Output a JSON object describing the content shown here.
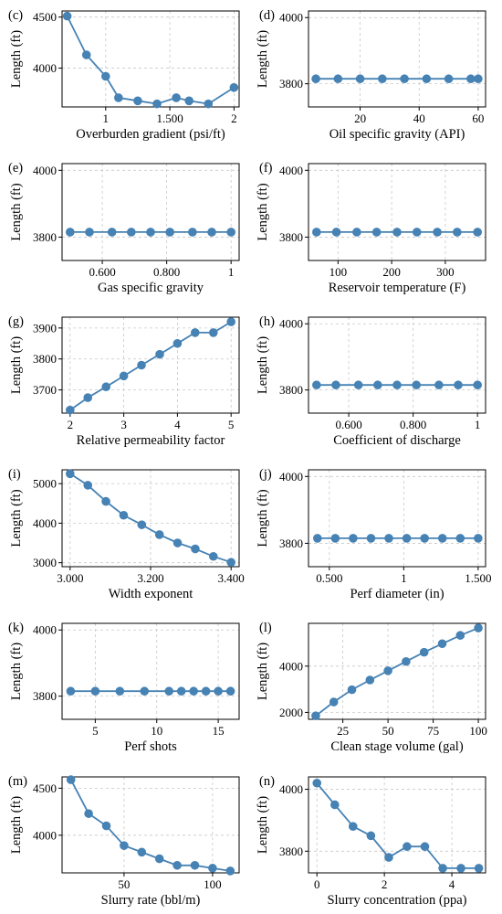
{
  "chart_data": [
    {
      "panel": "(c)",
      "type": "line",
      "xlabel": "Overburden gradient (psi/ft)",
      "ylabel": "Length (ft)",
      "xlim": [
        0.66,
        2.04
      ],
      "ylim": [
        3620,
        4560
      ],
      "xticks": [
        1,
        1.5,
        2
      ],
      "xtick_labels": [
        "1",
        "1.500",
        "2"
      ],
      "yticks": [
        4000,
        4500
      ],
      "ytick_labels": [
        "4000",
        "4500"
      ],
      "x": [
        0.7,
        0.85,
        1.0,
        1.1,
        1.25,
        1.4,
        1.55,
        1.65,
        1.8,
        2.0
      ],
      "y": [
        4510,
        4130,
        3920,
        3710,
        3680,
        3650,
        3710,
        3680,
        3650,
        3810
      ]
    },
    {
      "panel": "(d)",
      "type": "line",
      "xlabel": "Oil specific gravity (API)",
      "ylabel": "Length (ft)",
      "xlim": [
        2.5,
        62.5
      ],
      "ylim": [
        3730,
        4020
      ],
      "xticks": [
        20,
        40,
        60
      ],
      "xtick_labels": [
        "20",
        "40",
        "60"
      ],
      "yticks": [
        3800,
        4000
      ],
      "ytick_labels": [
        "3800",
        "4000"
      ],
      "x": [
        5,
        12.5,
        20,
        27.5,
        35,
        42.5,
        50,
        57.5,
        60
      ],
      "y": [
        3815,
        3815,
        3815,
        3815,
        3815,
        3815,
        3815,
        3815,
        3815
      ]
    },
    {
      "panel": "(e)",
      "type": "line",
      "xlabel": "Gas specific gravity",
      "ylabel": "Length (ft)",
      "xlim": [
        0.475,
        1.025
      ],
      "ylim": [
        3730,
        4020
      ],
      "xticks": [
        0.6,
        0.8,
        1.0
      ],
      "xtick_labels": [
        "0.600",
        "0.800",
        "1"
      ],
      "yticks": [
        3800,
        4000
      ],
      "ytick_labels": [
        "3800",
        "4000"
      ],
      "x": [
        0.5,
        0.56,
        0.63,
        0.69,
        0.75,
        0.81,
        0.88,
        0.94,
        1.0
      ],
      "y": [
        3815,
        3815,
        3815,
        3815,
        3815,
        3815,
        3815,
        3815,
        3815
      ]
    },
    {
      "panel": "(f)",
      "type": "line",
      "xlabel": "Reservoir temperature (F)",
      "ylabel": "Length (ft)",
      "xlim": [
        45,
        375
      ],
      "ylim": [
        3730,
        4020
      ],
      "xticks": [
        100,
        200,
        300
      ],
      "xtick_labels": [
        "100",
        "200",
        "300"
      ],
      "yticks": [
        3800,
        4000
      ],
      "ytick_labels": [
        "3800",
        "4000"
      ],
      "x": [
        60,
        97,
        135,
        172,
        210,
        247,
        285,
        322,
        360
      ],
      "y": [
        3815,
        3815,
        3815,
        3815,
        3815,
        3815,
        3815,
        3815,
        3815
      ]
    },
    {
      "panel": "(g)",
      "type": "line",
      "xlabel": "Relative permeability factor",
      "ylabel": "Length (ft)",
      "xlim": [
        1.85,
        5.15
      ],
      "ylim": [
        3625,
        3935
      ],
      "xticks": [
        2,
        3,
        4,
        5
      ],
      "xtick_labels": [
        "2",
        "3",
        "4",
        "5"
      ],
      "yticks": [
        3700,
        3800,
        3900
      ],
      "ytick_labels": [
        "3700",
        "3800",
        "3900"
      ],
      "x": [
        2.0,
        2.33,
        2.67,
        3.0,
        3.33,
        3.67,
        4.0,
        4.33,
        4.67,
        5.0
      ],
      "y": [
        3635,
        3675,
        3710,
        3745,
        3780,
        3815,
        3850,
        3885,
        3885,
        3920
      ]
    },
    {
      "panel": "(h)",
      "type": "line",
      "xlabel": "Coefficient of discharge",
      "ylabel": "Length (ft)",
      "xlim": [
        0.475,
        1.025
      ],
      "ylim": [
        3730,
        4020
      ],
      "xticks": [
        0.6,
        0.8,
        1.0
      ],
      "xtick_labels": [
        "0.600",
        "0.800",
        "1"
      ],
      "yticks": [
        3800,
        4000
      ],
      "ytick_labels": [
        "3800",
        "4000"
      ],
      "x": [
        0.5,
        0.56,
        0.63,
        0.69,
        0.75,
        0.81,
        0.88,
        0.94,
        1.0
      ],
      "y": [
        3815,
        3815,
        3815,
        3815,
        3815,
        3815,
        3815,
        3815,
        3815
      ]
    },
    {
      "panel": "(i)",
      "type": "line",
      "xlabel": "Width exponent",
      "ylabel": "Length (ft)",
      "xlim": [
        2.98,
        3.42
      ],
      "ylim": [
        2900,
        5350
      ],
      "xticks": [
        3.0,
        3.2,
        3.4
      ],
      "xtick_labels": [
        "3.000",
        "3.200",
        "3.400"
      ],
      "yticks": [
        3000,
        4000,
        5000
      ],
      "ytick_labels": [
        "3000",
        "4000",
        "5000"
      ],
      "x": [
        3.0,
        3.044,
        3.089,
        3.133,
        3.178,
        3.222,
        3.267,
        3.311,
        3.356,
        3.4
      ],
      "y": [
        5250,
        4960,
        4550,
        4200,
        3960,
        3710,
        3500,
        3350,
        3160,
        3010
      ]
    },
    {
      "panel": "(j)",
      "type": "line",
      "xlabel": "Perf diameter (in)",
      "ylabel": "Length (ft)",
      "xlim": [
        0.36,
        1.55
      ],
      "ylim": [
        3730,
        4020
      ],
      "xticks": [
        0.5,
        1.0,
        1.5
      ],
      "xtick_labels": [
        "0.500",
        "1",
        "1.500"
      ],
      "yticks": [
        3800,
        4000
      ],
      "ytick_labels": [
        "3800",
        "4000"
      ],
      "x": [
        0.42,
        0.54,
        0.66,
        0.78,
        0.9,
        1.02,
        1.14,
        1.26,
        1.38,
        1.5
      ],
      "y": [
        3815,
        3815,
        3815,
        3815,
        3815,
        3815,
        3815,
        3815,
        3815,
        3815
      ]
    },
    {
      "panel": "(k)",
      "type": "line",
      "xlabel": "Perf shots",
      "ylabel": "Length (ft)",
      "xlim": [
        2.3,
        16.7
      ],
      "ylim": [
        3730,
        4020
      ],
      "xticks": [
        5,
        10,
        15
      ],
      "xtick_labels": [
        "5",
        "10",
        "15"
      ],
      "yticks": [
        3800,
        4000
      ],
      "ytick_labels": [
        "3800",
        "4000"
      ],
      "x": [
        3,
        5,
        7,
        9,
        11,
        12,
        13,
        14,
        15,
        16
      ],
      "y": [
        3815,
        3815,
        3815,
        3815,
        3815,
        3815,
        3815,
        3815,
        3815,
        3815
      ]
    },
    {
      "panel": "(l)",
      "type": "line",
      "xlabel": "Clean stage volume (gal)",
      "ylabel": "Length (ft)",
      "xlim": [
        6,
        104
      ],
      "ylim": [
        1700,
        5850
      ],
      "xticks": [
        25,
        50,
        75,
        100
      ],
      "xtick_labels": [
        "25",
        "50",
        "75",
        "100"
      ],
      "yticks": [
        2000,
        4000
      ],
      "ytick_labels": [
        "2000",
        "4000"
      ],
      "x": [
        10,
        20,
        30,
        40,
        50,
        60,
        70,
        80,
        90,
        100
      ],
      "y": [
        1850,
        2450,
        2980,
        3400,
        3800,
        4200,
        4600,
        4970,
        5330,
        5650
      ]
    },
    {
      "panel": "(m)",
      "type": "line",
      "xlabel": "Slurry rate (bbl/m)",
      "ylabel": "Length (ft)",
      "xlim": [
        15,
        115
      ],
      "ylim": [
        3600,
        4620
      ],
      "xticks": [
        50,
        100
      ],
      "xtick_labels": [
        "50",
        "100"
      ],
      "yticks": [
        4000,
        4500
      ],
      "ytick_labels": [
        "4000",
        "4500"
      ],
      "x": [
        20,
        30,
        40,
        50,
        60,
        70,
        80,
        90,
        100,
        110
      ],
      "y": [
        4590,
        4230,
        4100,
        3890,
        3820,
        3750,
        3680,
        3680,
        3650,
        3620
      ]
    },
    {
      "panel": "(n)",
      "type": "line",
      "xlabel": "Slurry concentration (ppa)",
      "ylabel": "Length (ft)",
      "xlim": [
        -0.25,
        5.0
      ],
      "ylim": [
        3730,
        4040
      ],
      "xticks": [
        0,
        2,
        4
      ],
      "xtick_labels": [
        "0",
        "2",
        "4"
      ],
      "yticks": [
        3800,
        4000
      ],
      "ytick_labels": [
        "3800",
        "4000"
      ],
      "x": [
        0.0,
        0.53,
        1.07,
        1.6,
        2.13,
        2.67,
        3.2,
        3.73,
        4.27,
        4.8
      ],
      "y": [
        4020,
        3950,
        3880,
        3850,
        3780,
        3815,
        3815,
        3745,
        3745,
        3745
      ]
    }
  ],
  "colors": {
    "series": "#4682b4",
    "grid": "#c8c8c8",
    "axis": "#000000"
  }
}
